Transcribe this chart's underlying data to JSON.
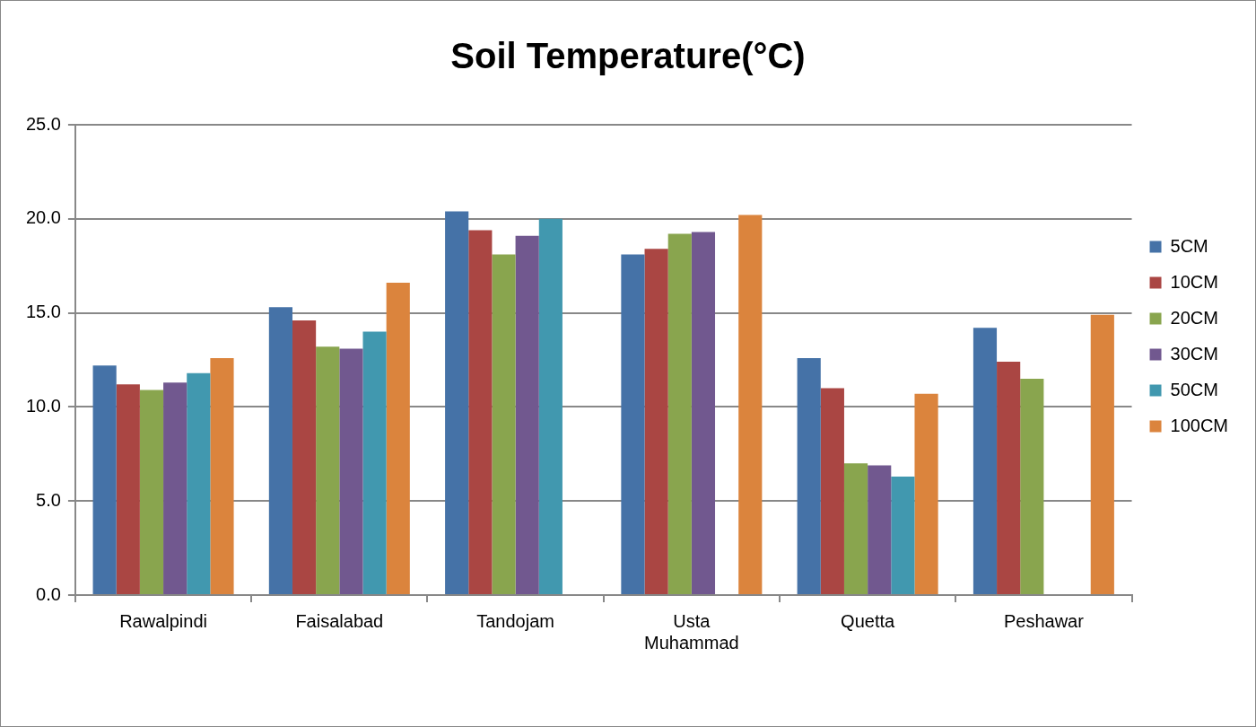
{
  "chart_data": {
    "type": "bar",
    "title": "Soil Temperature(°C)",
    "categories": [
      "Rawalpindi",
      "Faisalabad",
      "Tandojam",
      "Usta Muhammad",
      "Quetta",
      "Peshawar"
    ],
    "series": [
      {
        "name": "5CM",
        "color": "#4572a7",
        "values": [
          12.2,
          15.3,
          20.4,
          18.1,
          12.6,
          14.2
        ]
      },
      {
        "name": "10CM",
        "color": "#aa4643",
        "values": [
          11.2,
          14.6,
          19.4,
          18.4,
          11.0,
          12.4
        ]
      },
      {
        "name": "20CM",
        "color": "#89a54e",
        "values": [
          10.9,
          13.2,
          18.1,
          19.2,
          7.0,
          11.5
        ]
      },
      {
        "name": "30CM",
        "color": "#71588f",
        "values": [
          11.3,
          13.1,
          19.1,
          19.3,
          6.9,
          null
        ]
      },
      {
        "name": "50CM",
        "color": "#4198af",
        "values": [
          11.8,
          14.0,
          20.0,
          null,
          6.3,
          null
        ]
      },
      {
        "name": "100CM",
        "color": "#db843d",
        "values": [
          12.6,
          16.6,
          null,
          20.2,
          10.7,
          14.9
        ]
      }
    ],
    "ylim": [
      0,
      25
    ],
    "yticks": [
      {
        "value": 0,
        "label": "0.0"
      },
      {
        "value": 5,
        "label": "5.0"
      },
      {
        "value": 10,
        "label": "10.0"
      },
      {
        "value": 15,
        "label": "15.0"
      },
      {
        "value": 20,
        "label": "20.0"
      },
      {
        "value": 25,
        "label": "25.0"
      }
    ],
    "grid": "y",
    "legend": "right"
  }
}
